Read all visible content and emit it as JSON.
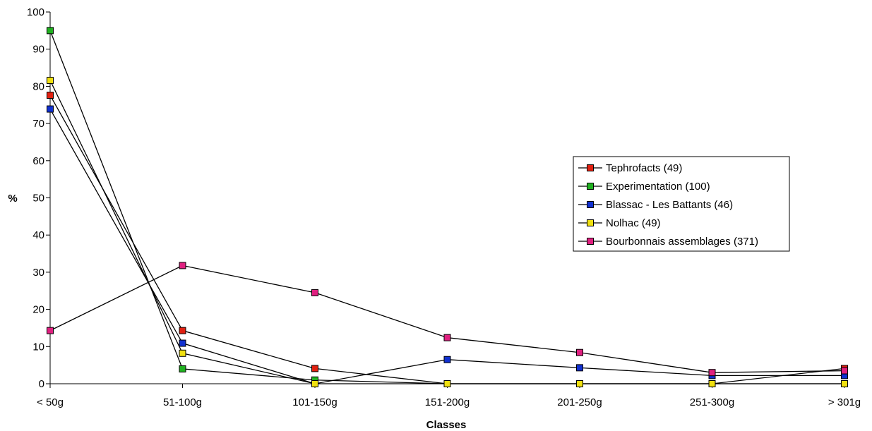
{
  "chart_data": {
    "type": "line",
    "xlabel": "Classes",
    "ylabel": "%",
    "ylim": [
      0,
      100
    ],
    "yticks": [
      0,
      10,
      20,
      30,
      40,
      50,
      60,
      70,
      80,
      90,
      100
    ],
    "categories": [
      "< 50g",
      "51-100g",
      "101-150g",
      "151-200g",
      "201-250g",
      "251-300g",
      "> 301g"
    ],
    "grid": false,
    "legend_position": "right",
    "series": [
      {
        "name": "Tephrofacts (49)",
        "color": "#e02010",
        "values": [
          77.6,
          14.3,
          4.1,
          0,
          0,
          0,
          4.1
        ]
      },
      {
        "name": "Experimentation (100)",
        "color": "#20b020",
        "values": [
          95,
          4,
          1,
          0,
          0,
          0,
          0
        ]
      },
      {
        "name": "Blassac - Les Battants (46)",
        "color": "#1030d0",
        "values": [
          73.9,
          10.9,
          0,
          6.5,
          4.3,
          2.2,
          2.2
        ]
      },
      {
        "name": "Nolhac (49)",
        "color": "#f0e010",
        "values": [
          81.6,
          8.2,
          0,
          0,
          0,
          0,
          0
        ]
      },
      {
        "name": "Bourbonnais assemblages (371)",
        "color": "#e02080",
        "values": [
          14.3,
          31.8,
          24.5,
          12.4,
          8.4,
          3.0,
          3.5
        ]
      }
    ]
  }
}
